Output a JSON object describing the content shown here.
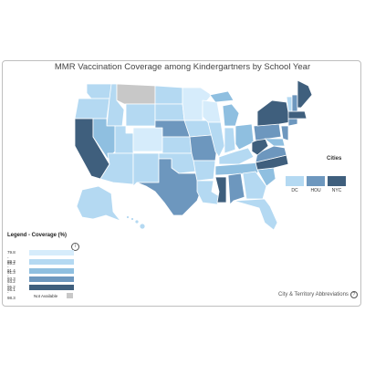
{
  "title": "MMR Vaccination Coverage among Kindergartners by School Year",
  "colors": {
    "c1": "#d6ecfb",
    "c2": "#b4d9f2",
    "c3": "#8fbfe0",
    "c4": "#6d97be",
    "c5": "#3f5f7d",
    "na": "#c8c8c8"
  },
  "cities": {
    "title": "Cities",
    "items": [
      {
        "label": "DC",
        "color": "#b4d9f2"
      },
      {
        "label": "HOU",
        "color": "#6d97be"
      },
      {
        "label": "NYC",
        "color": "#3f5f7d"
      }
    ]
  },
  "legend": {
    "title": "Legend - Coverage (%)",
    "info_icon": "info-icon",
    "items": [
      {
        "label": "79.8 - 89.2",
        "color": "#d6ecfb"
      },
      {
        "label": "89.3 - 91.3",
        "color": "#b4d9f2"
      },
      {
        "label": "91.4 - 93.2",
        "color": "#8fbfe0"
      },
      {
        "label": "93.3 - 95.1",
        "color": "#6d97be"
      },
      {
        "label": "95.2 - 98.3",
        "color": "#3f5f7d"
      }
    ],
    "na_label": "Not Available"
  },
  "abbreviations_link": "City & Territory Abbreviations",
  "help_icon": "question-icon"
}
